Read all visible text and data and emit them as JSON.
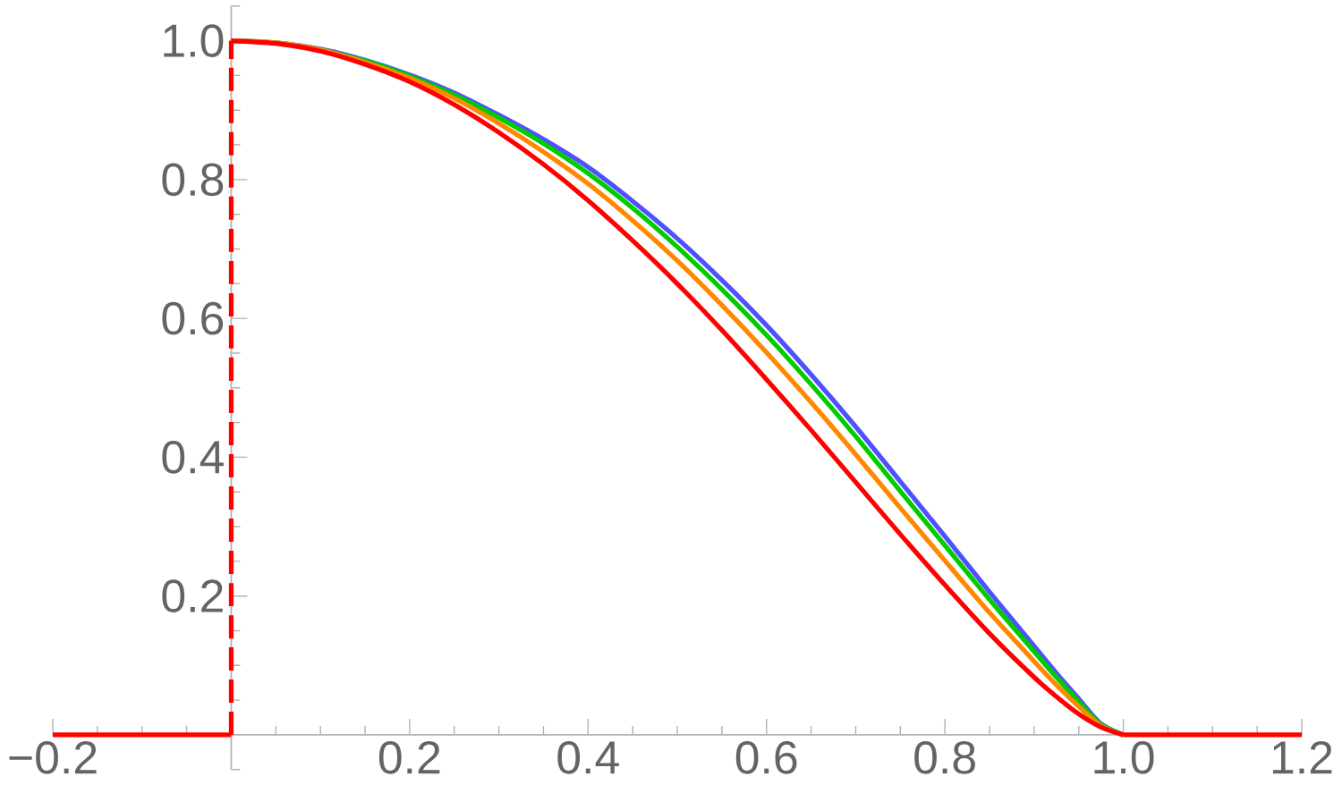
{
  "chart_data": {
    "type": "line",
    "xlim": [
      -0.2,
      1.2
    ],
    "ylim": [
      -0.05,
      1.05
    ],
    "xticks": [
      {
        "value": -0.2,
        "label": "−0.2"
      },
      {
        "value": -0.15,
        "label": null
      },
      {
        "value": -0.1,
        "label": null
      },
      {
        "value": -0.05,
        "label": null
      },
      {
        "value": 0.05,
        "label": null
      },
      {
        "value": 0.1,
        "label": null
      },
      {
        "value": 0.15,
        "label": null
      },
      0.2,
      {
        "value": 0.25,
        "label": null
      },
      {
        "value": 0.3,
        "label": null
      },
      {
        "value": 0.35,
        "label": null
      },
      0.4,
      {
        "value": 0.45,
        "label": null
      },
      {
        "value": 0.5,
        "label": null
      },
      {
        "value": 0.55,
        "label": null
      },
      0.6,
      {
        "value": 0.65,
        "label": null
      },
      {
        "value": 0.7,
        "label": null
      },
      {
        "value": 0.75,
        "label": null
      },
      0.8,
      {
        "value": 0.85,
        "label": null
      },
      {
        "value": 0.9,
        "label": null
      },
      {
        "value": 0.95,
        "label": null
      },
      {
        "value": 1,
        "label": "1.0"
      },
      {
        "value": 1.05,
        "label": null
      },
      {
        "value": 1.1,
        "label": null
      },
      {
        "value": 1.15,
        "label": null
      },
      1.2
    ],
    "yticks": [
      {
        "value": -0.05,
        "label": null
      },
      {
        "value": 0.05,
        "label": null
      },
      {
        "value": 0.1,
        "label": null
      },
      {
        "value": 0.15,
        "label": null
      },
      0.2,
      {
        "value": 0.25,
        "label": null
      },
      {
        "value": 0.3,
        "label": null
      },
      {
        "value": 0.35,
        "label": null
      },
      0.4,
      {
        "value": 0.45,
        "label": null
      },
      {
        "value": 0.5,
        "label": null
      },
      {
        "value": 0.55,
        "label": null
      },
      0.6,
      {
        "value": 0.65,
        "label": null
      },
      {
        "value": 0.7,
        "label": null
      },
      {
        "value": 0.75,
        "label": null
      },
      0.8,
      {
        "value": 0.85,
        "label": null
      },
      {
        "value": 0.9,
        "label": null
      },
      {
        "value": 0.95,
        "label": null
      },
      {
        "value": 1,
        "label": "1.0"
      },
      {
        "value": 1.05,
        "label": null
      }
    ],
    "series": [
      {
        "color": "#5050ff",
        "x": [
          0,
          0.05,
          0.1,
          0.15,
          0.2,
          0.25,
          0.3,
          0.35,
          0.4,
          0.45,
          0.5,
          0.55,
          0.6,
          0.65,
          0.7,
          0.75,
          0.8,
          0.85,
          0.9,
          0.925,
          0.95,
          0.975,
          1
        ],
        "values": [
          1.0,
          0.997,
          0.988,
          0.972,
          0.951,
          0.925,
          0.893,
          0.858,
          0.818,
          0.769,
          0.715,
          0.655,
          0.59,
          0.519,
          0.444,
          0.365,
          0.286,
          0.206,
          0.128,
          0.089,
          0.052,
          0.016,
          0
        ]
      },
      {
        "color": "#00cc00",
        "x": [
          0,
          0.05,
          0.1,
          0.15,
          0.2,
          0.25,
          0.3,
          0.35,
          0.4,
          0.45,
          0.5,
          0.55,
          0.6,
          0.65,
          0.7,
          0.75,
          0.8,
          0.85,
          0.9,
          0.925,
          0.95,
          0.975,
          1
        ],
        "values": [
          1.0,
          0.997,
          0.987,
          0.971,
          0.949,
          0.922,
          0.889,
          0.852,
          0.809,
          0.759,
          0.703,
          0.642,
          0.576,
          0.505,
          0.43,
          0.351,
          0.273,
          0.195,
          0.12,
          0.083,
          0.048,
          0.015,
          0
        ]
      },
      {
        "color": "#ff8800",
        "x": [
          0,
          0.05,
          0.1,
          0.15,
          0.2,
          0.25,
          0.3,
          0.35,
          0.4,
          0.45,
          0.5,
          0.55,
          0.6,
          0.65,
          0.7,
          0.75,
          0.8,
          0.85,
          0.9,
          0.925,
          0.95,
          0.975,
          1
        ],
        "values": [
          1.0,
          0.997,
          0.987,
          0.969,
          0.946,
          0.917,
          0.881,
          0.84,
          0.794,
          0.741,
          0.683,
          0.619,
          0.551,
          0.479,
          0.404,
          0.327,
          0.251,
          0.176,
          0.106,
          0.072,
          0.041,
          0.013,
          0
        ]
      },
      {
        "color": "#ff0000",
        "x": [
          0,
          0.05,
          0.1,
          0.15,
          0.2,
          0.25,
          0.3,
          0.35,
          0.4,
          0.45,
          0.5,
          0.55,
          0.6,
          0.65,
          0.7,
          0.75,
          0.8,
          0.85,
          0.9,
          0.925,
          0.95,
          0.975,
          1
        ],
        "values": [
          1.0,
          0.996,
          0.985,
          0.966,
          0.941,
          0.908,
          0.868,
          0.822,
          0.77,
          0.712,
          0.65,
          0.583,
          0.512,
          0.439,
          0.364,
          0.289,
          0.216,
          0.146,
          0.083,
          0.055,
          0.03,
          0.011,
          0
        ]
      },
      {
        "color": "#ff0000",
        "x": [
          -0.2,
          0
        ],
        "values": [
          0,
          0
        ]
      },
      {
        "color": "#ff0000",
        "x": [
          1,
          1.2
        ],
        "values": [
          0,
          0
        ]
      },
      {
        "color": "#ff0000",
        "line_style": "dashed",
        "x": [
          0,
          0
        ],
        "values": [
          0,
          1
        ]
      }
    ]
  }
}
